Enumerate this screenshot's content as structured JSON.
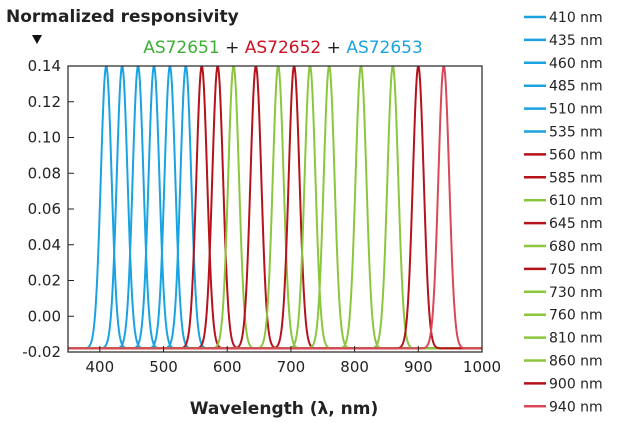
{
  "chart_data": {
    "type": "line",
    "ylabel": "Normalized responsivity",
    "xlabel": "Wavelength (λ, nm)",
    "title_parts": [
      {
        "text": "AS72651",
        "color": "#3cb034"
      },
      {
        "text": " + ",
        "color": "#222222"
      },
      {
        "text": "AS72652",
        "color": "#d01020"
      },
      {
        "text": " + ",
        "color": "#222222"
      },
      {
        "text": "AS72653",
        "color": "#1aa3e0"
      }
    ],
    "xlim": [
      350,
      1000
    ],
    "ylim": [
      -0.02,
      0.14
    ],
    "x_ticks": [
      400,
      500,
      600,
      700,
      800,
      900,
      1000
    ],
    "y_ticks": [
      -0.02,
      0.0,
      0.02,
      0.04,
      0.06,
      0.08,
      0.1,
      0.12,
      0.14
    ],
    "y_tick_labels": [
      "-0.02",
      "0.00",
      "0.02",
      "0.04",
      "0.06",
      "0.08",
      "0.10",
      "0.12",
      "0.14"
    ],
    "series": [
      {
        "name": "410 nm",
        "peak": 410,
        "fwhm": 20,
        "color": "#1aa3e0"
      },
      {
        "name": "435 nm",
        "peak": 435,
        "fwhm": 20,
        "color": "#1aa3e0"
      },
      {
        "name": "460 nm",
        "peak": 460,
        "fwhm": 20,
        "color": "#1aa3e0"
      },
      {
        "name": "485 nm",
        "peak": 485,
        "fwhm": 20,
        "color": "#1aa3e0"
      },
      {
        "name": "510 nm",
        "peak": 510,
        "fwhm": 20,
        "color": "#1aa3e0"
      },
      {
        "name": "535 nm",
        "peak": 535,
        "fwhm": 20,
        "color": "#1aa3e0"
      },
      {
        "name": "560 nm",
        "peak": 560,
        "fwhm": 20,
        "color": "#b5121b"
      },
      {
        "name": "585 nm",
        "peak": 585,
        "fwhm": 20,
        "color": "#b5121b"
      },
      {
        "name": "610 nm",
        "peak": 610,
        "fwhm": 20,
        "color": "#8cc63f"
      },
      {
        "name": "645 nm",
        "peak": 645,
        "fwhm": 20,
        "color": "#b5121b"
      },
      {
        "name": "680 nm",
        "peak": 680,
        "fwhm": 20,
        "color": "#8cc63f"
      },
      {
        "name": "705 nm",
        "peak": 705,
        "fwhm": 20,
        "color": "#b5121b"
      },
      {
        "name": "730 nm",
        "peak": 730,
        "fwhm": 20,
        "color": "#8cc63f"
      },
      {
        "name": "760 nm",
        "peak": 760,
        "fwhm": 20,
        "color": "#8cc63f"
      },
      {
        "name": "810 nm",
        "peak": 810,
        "fwhm": 20,
        "color": "#8cc63f"
      },
      {
        "name": "860 nm",
        "peak": 860,
        "fwhm": 20,
        "color": "#8cc63f"
      },
      {
        "name": "900 nm",
        "peak": 900,
        "fwhm": 20,
        "color": "#b5121b"
      },
      {
        "name": "940 nm",
        "peak": 940,
        "fwhm": 20,
        "color": "#d9485a"
      }
    ],
    "peak_value": 0.14,
    "baseline": -0.018,
    "grid": false,
    "legend_position": "right"
  }
}
